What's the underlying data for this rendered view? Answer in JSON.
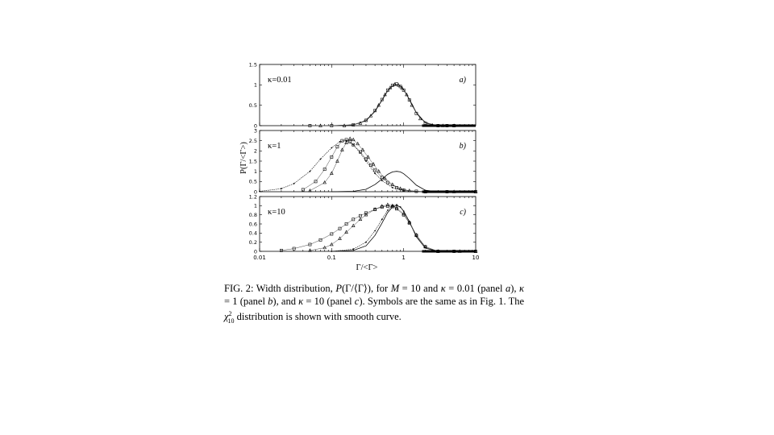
{
  "chart_data": [
    {
      "type": "scatter",
      "panel_label": "a)",
      "annotation": "κ=0.01",
      "ylim": [
        0,
        1.5
      ],
      "yticks": [
        "0",
        "0.5",
        "1",
        "1.5"
      ],
      "xscale": "log",
      "xlim": [
        0.01,
        10
      ],
      "curve_name": "χ²₁₀",
      "curve": [
        [
          0.1,
          0.0
        ],
        [
          0.2,
          0.02
        ],
        [
          0.3,
          0.12
        ],
        [
          0.4,
          0.35
        ],
        [
          0.5,
          0.62
        ],
        [
          0.6,
          0.85
        ],
        [
          0.7,
          0.97
        ],
        [
          0.8,
          1.0
        ],
        [
          0.9,
          0.97
        ],
        [
          1.0,
          0.88
        ],
        [
          1.2,
          0.65
        ],
        [
          1.5,
          0.32
        ],
        [
          2.0,
          0.07
        ],
        [
          3.0,
          0.0
        ],
        [
          5.0,
          0.0
        ]
      ],
      "series": [
        {
          "marker": "square",
          "points": [
            [
              0.05,
              0.0
            ],
            [
              0.1,
              0.0
            ],
            [
              0.2,
              0.02
            ],
            [
              0.3,
              0.13
            ],
            [
              0.4,
              0.37
            ],
            [
              0.5,
              0.64
            ],
            [
              0.6,
              0.87
            ],
            [
              0.7,
              0.99
            ],
            [
              0.8,
              1.02
            ],
            [
              0.9,
              0.96
            ],
            [
              1.0,
              0.87
            ],
            [
              1.2,
              0.63
            ],
            [
              1.5,
              0.3
            ],
            [
              2.0,
              0.06
            ],
            [
              3.0,
              0.0
            ],
            [
              4.0,
              0.0
            ],
            [
              5.0,
              0.0
            ]
          ]
        },
        {
          "marker": "triangle",
          "points": [
            [
              0.07,
              0.0
            ],
            [
              0.15,
              0.0
            ],
            [
              0.25,
              0.06
            ],
            [
              0.35,
              0.24
            ],
            [
              0.45,
              0.5
            ],
            [
              0.55,
              0.76
            ],
            [
              0.65,
              0.93
            ],
            [
              0.75,
              1.01
            ],
            [
              0.85,
              0.99
            ],
            [
              0.95,
              0.92
            ],
            [
              1.1,
              0.76
            ],
            [
              1.3,
              0.5
            ],
            [
              1.7,
              0.17
            ],
            [
              2.5,
              0.01
            ],
            [
              3.5,
              0.0
            ],
            [
              5.0,
              0.0
            ]
          ]
        }
      ]
    },
    {
      "type": "scatter",
      "panel_label": "b)",
      "annotation": "κ=1",
      "ylim": [
        0,
        3
      ],
      "yticks": [
        "0",
        "0.5",
        "1",
        "1.5",
        "2",
        "2.5",
        "3"
      ],
      "xscale": "log",
      "xlim": [
        0.01,
        10
      ],
      "curve_name": "χ²₁₀",
      "curve": [
        [
          0.1,
          0.0
        ],
        [
          0.2,
          0.02
        ],
        [
          0.3,
          0.12
        ],
        [
          0.4,
          0.35
        ],
        [
          0.5,
          0.62
        ],
        [
          0.6,
          0.85
        ],
        [
          0.7,
          0.97
        ],
        [
          0.8,
          1.0
        ],
        [
          0.9,
          0.97
        ],
        [
          1.0,
          0.88
        ],
        [
          1.2,
          0.65
        ],
        [
          1.5,
          0.32
        ],
        [
          2.0,
          0.07
        ],
        [
          3.0,
          0.0
        ],
        [
          5.0,
          0.0
        ]
      ],
      "series": [
        {
          "marker": "line",
          "points": [
            [
              0.01,
              0.02
            ],
            [
              0.02,
              0.15
            ],
            [
              0.03,
              0.4
            ],
            [
              0.05,
              1.0
            ],
            [
              0.07,
              1.6
            ],
            [
              0.1,
              2.15
            ],
            [
              0.13,
              2.45
            ],
            [
              0.16,
              2.5
            ],
            [
              0.2,
              2.3
            ],
            [
              0.25,
              1.9
            ],
            [
              0.3,
              1.5
            ],
            [
              0.4,
              0.9
            ],
            [
              0.5,
              0.55
            ],
            [
              0.7,
              0.2
            ],
            [
              1.0,
              0.05
            ],
            [
              1.5,
              0.01
            ],
            [
              3.0,
              0.0
            ],
            [
              10,
              0.0
            ]
          ]
        },
        {
          "marker": "square",
          "points": [
            [
              0.04,
              0.1
            ],
            [
              0.06,
              0.5
            ],
            [
              0.08,
              1.1
            ],
            [
              0.1,
              1.7
            ],
            [
              0.12,
              2.2
            ],
            [
              0.14,
              2.5
            ],
            [
              0.16,
              2.55
            ],
            [
              0.18,
              2.45
            ],
            [
              0.2,
              2.3
            ],
            [
              0.25,
              1.95
            ],
            [
              0.3,
              1.6
            ],
            [
              0.35,
              1.3
            ],
            [
              0.4,
              1.05
            ],
            [
              0.5,
              0.7
            ],
            [
              0.6,
              0.45
            ],
            [
              0.8,
              0.2
            ],
            [
              1.0,
              0.08
            ],
            [
              1.5,
              0.02
            ],
            [
              2.0,
              0.0
            ],
            [
              4.0,
              0.0
            ],
            [
              10,
              0.0
            ]
          ]
        },
        {
          "marker": "triangle",
          "points": [
            [
              0.05,
              0.05
            ],
            [
              0.08,
              0.45
            ],
            [
              0.1,
              0.9
            ],
            [
              0.12,
              1.5
            ],
            [
              0.14,
              2.05
            ],
            [
              0.16,
              2.4
            ],
            [
              0.18,
              2.6
            ],
            [
              0.2,
              2.55
            ],
            [
              0.23,
              2.35
            ],
            [
              0.27,
              2.05
            ],
            [
              0.32,
              1.7
            ],
            [
              0.38,
              1.35
            ],
            [
              0.45,
              1.0
            ],
            [
              0.55,
              0.65
            ],
            [
              0.7,
              0.35
            ],
            [
              0.9,
              0.15
            ],
            [
              1.2,
              0.05
            ],
            [
              2.0,
              0.0
            ],
            [
              5.0,
              0.0
            ],
            [
              10,
              0.0
            ]
          ]
        }
      ]
    },
    {
      "type": "scatter",
      "panel_label": "c)",
      "annotation": "κ=10",
      "ylim": [
        0,
        1.2
      ],
      "yticks": [
        "0",
        "0.2",
        "0.4",
        "0.6",
        "0.8",
        "1",
        "1.2"
      ],
      "xscale": "log",
      "xlim": [
        0.01,
        10
      ],
      "xticks": [
        "0.01",
        "0.1",
        "1",
        "10"
      ],
      "xlabel": "Γ/<Γ>",
      "curve_name": "χ²₁₀",
      "curve": [
        [
          0.1,
          0.0
        ],
        [
          0.2,
          0.02
        ],
        [
          0.3,
          0.12
        ],
        [
          0.4,
          0.35
        ],
        [
          0.5,
          0.62
        ],
        [
          0.6,
          0.85
        ],
        [
          0.7,
          0.97
        ],
        [
          0.8,
          1.0
        ],
        [
          0.9,
          0.97
        ],
        [
          1.0,
          0.88
        ],
        [
          1.2,
          0.65
        ],
        [
          1.5,
          0.32
        ],
        [
          2.0,
          0.07
        ],
        [
          3.0,
          0.0
        ],
        [
          5.0,
          0.0
        ]
      ],
      "series": [
        {
          "marker": "square",
          "points": [
            [
              0.02,
              0.02
            ],
            [
              0.03,
              0.06
            ],
            [
              0.05,
              0.15
            ],
            [
              0.07,
              0.25
            ],
            [
              0.1,
              0.38
            ],
            [
              0.13,
              0.5
            ],
            [
              0.16,
              0.6
            ],
            [
              0.2,
              0.7
            ],
            [
              0.25,
              0.78
            ],
            [
              0.3,
              0.84
            ],
            [
              0.4,
              0.92
            ],
            [
              0.5,
              0.97
            ],
            [
              0.6,
              0.99
            ],
            [
              0.7,
              0.98
            ],
            [
              0.8,
              0.93
            ],
            [
              1.0,
              0.8
            ],
            [
              1.2,
              0.62
            ],
            [
              1.5,
              0.35
            ],
            [
              2.0,
              0.1
            ],
            [
              3.0,
              0.0
            ],
            [
              5.0,
              0.0
            ],
            [
              10,
              0.0
            ]
          ]
        },
        {
          "marker": "triangle",
          "points": [
            [
              0.05,
              0.02
            ],
            [
              0.08,
              0.08
            ],
            [
              0.1,
              0.15
            ],
            [
              0.13,
              0.28
            ],
            [
              0.16,
              0.42
            ],
            [
              0.2,
              0.56
            ],
            [
              0.25,
              0.7
            ],
            [
              0.3,
              0.8
            ],
            [
              0.4,
              0.92
            ],
            [
              0.5,
              0.99
            ],
            [
              0.6,
              1.02
            ],
            [
              0.7,
              1.0
            ],
            [
              0.8,
              0.95
            ],
            [
              1.0,
              0.82
            ],
            [
              1.2,
              0.63
            ],
            [
              1.5,
              0.36
            ],
            [
              2.0,
              0.1
            ],
            [
              3.0,
              0.0
            ],
            [
              6.0,
              0.0
            ],
            [
              10,
              0.0
            ]
          ]
        },
        {
          "marker": "line",
          "points": [
            [
              0.1,
              0.0
            ],
            [
              0.2,
              0.05
            ],
            [
              0.3,
              0.2
            ],
            [
              0.4,
              0.45
            ],
            [
              0.5,
              0.7
            ],
            [
              0.6,
              0.9
            ],
            [
              0.7,
              1.0
            ],
            [
              0.8,
              1.02
            ],
            [
              0.9,
              0.97
            ],
            [
              1.0,
              0.88
            ],
            [
              1.2,
              0.66
            ],
            [
              1.5,
              0.33
            ],
            [
              2.0,
              0.08
            ],
            [
              3.0,
              0.0
            ],
            [
              10,
              0.0
            ]
          ]
        }
      ]
    }
  ],
  "y_axis_title": "P(Γ/<Γ>)",
  "caption": {
    "intro": "FIG. 2: Width distribution, ",
    "p_expr": "P",
    "p_arg": "(Γ/⟨Γ⟩)",
    "mid1": ", for ",
    "m_sym": "M",
    "m_val": " = 10 and ",
    "k_sym": "κ",
    "k1_val": " = 0.01 (panel ",
    "panel_a": "a",
    "sep1": "), ",
    "k2_val": " = 1 (panel ",
    "panel_b": "b",
    "sep2": "), and ",
    "k3_val": " = 10 (panel ",
    "panel_c": "c",
    "end1": "). Symbols are the same as in Fig. 1. The ",
    "chi": "χ",
    "chi_sup": "2",
    "chi_sub": "10",
    "end2": " distribution is shown with smooth curve."
  }
}
